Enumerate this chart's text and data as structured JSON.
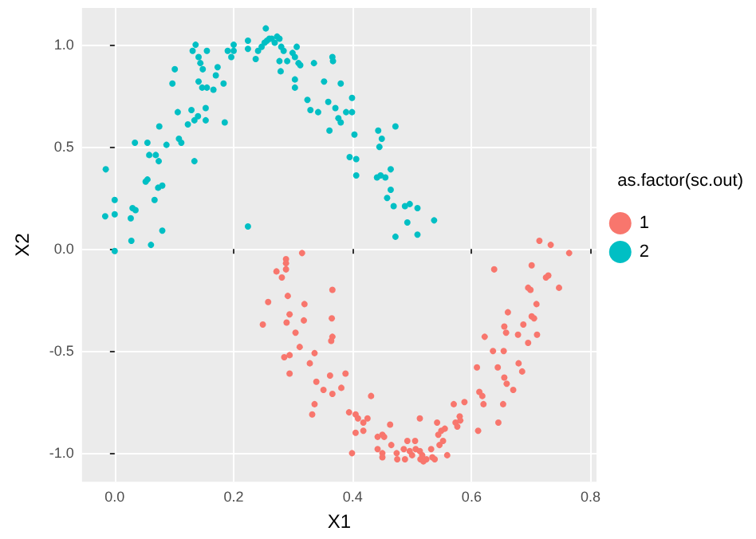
{
  "chart_data": {
    "type": "scatter",
    "xlabel": "X1",
    "ylabel": "X2",
    "legend_title": "as.factor(sc.out)",
    "legend": "right",
    "grid": true,
    "marker": "circle",
    "xlim": [
      -0.055,
      0.81
    ],
    "ylim": [
      -1.14,
      1.18
    ],
    "xticks": [
      {
        "value": 0,
        "label": "0.0"
      },
      {
        "value": 0.2,
        "label": "0.2"
      },
      {
        "value": 0.4,
        "label": "0.4"
      },
      {
        "value": 0.6,
        "label": "0.6"
      },
      {
        "value": 0.8,
        "label": "0.8"
      }
    ],
    "yticks": [
      {
        "value": -1,
        "label": "-1.0"
      },
      {
        "value": -0.5,
        "label": "-0.5"
      },
      {
        "value": 0,
        "label": "0.0"
      },
      {
        "value": 0.5,
        "label": "0.5"
      },
      {
        "value": 1,
        "label": "1.0"
      }
    ],
    "series": [
      {
        "name": "1",
        "color": "#f8766d",
        "x": [
          0.315,
          0.288,
          0.288,
          0.272,
          0.281,
          0.288,
          0.366,
          0.291,
          0.258,
          0.319,
          0.294,
          0.249,
          0.289,
          0.365,
          0.318,
          0.304,
          0.366,
          0.364,
          0.311,
          0.336,
          0.294,
          0.285,
          0.328,
          0.294,
          0.362,
          0.388,
          0.339,
          0.351,
          0.381,
          0.366,
          0.336,
          0.332,
          0.405,
          0.394,
          0.409,
          0.431,
          0.418,
          0.425,
          0.405,
          0.418,
          0.399,
          0.442,
          0.442,
          0.45,
          0.453,
          0.45,
          0.45,
          0.463,
          0.465,
          0.474,
          0.475,
          0.486,
          0.488,
          0.492,
          0.496,
          0.5,
          0.505,
          0.506,
          0.513,
          0.514,
          0.517,
          0.519,
          0.524,
          0.513,
          0.532,
          0.534,
          0.538,
          0.542,
          0.544,
          0.549,
          0.546,
          0.552,
          0.555,
          0.559,
          0.57,
          0.573,
          0.58,
          0.581,
          0.588,
          0.576,
          0.611,
          0.613,
          0.618,
          0.62,
          0.609,
          0.622,
          0.636,
          0.644,
          0.638,
          0.645,
          0.653,
          0.654,
          0.655,
          0.658,
          0.655,
          0.659,
          0.661,
          0.67,
          0.678,
          0.679,
          0.685,
          0.687,
          0.695,
          0.695,
          0.701,
          0.699,
          0.701,
          0.705,
          0.71,
          0.709,
          0.714,
          0.725,
          0.729,
          0.733,
          0.747,
          0.764
        ],
        "values": [
          -0.02,
          -0.05,
          -0.07,
          -0.11,
          -0.14,
          -0.1,
          -0.2,
          -0.23,
          -0.26,
          -0.27,
          -0.32,
          -0.37,
          -0.36,
          -0.34,
          -0.35,
          -0.41,
          -0.43,
          -0.45,
          -0.48,
          -0.51,
          -0.52,
          -0.53,
          -0.56,
          -0.61,
          -0.62,
          -0.61,
          -0.65,
          -0.69,
          -0.68,
          -0.71,
          -0.76,
          -0.81,
          -0.81,
          -0.8,
          -0.83,
          -0.72,
          -0.85,
          -0.83,
          -0.9,
          -0.89,
          -1.0,
          -0.92,
          -0.98,
          -0.91,
          -0.92,
          -1.0,
          -1.02,
          -0.86,
          -0.96,
          -1.0,
          -1.03,
          -0.98,
          -1.03,
          -0.94,
          -0.99,
          -1.01,
          -0.94,
          -0.98,
          -0.99,
          -1.03,
          -1.01,
          -1.04,
          -1.03,
          -0.83,
          -0.98,
          -1.02,
          -1.03,
          -0.85,
          -0.91,
          -0.89,
          -0.96,
          -0.94,
          -0.88,
          -1.01,
          -0.76,
          -0.85,
          -0.82,
          -0.84,
          -0.75,
          -0.87,
          -0.89,
          -0.7,
          -0.72,
          -0.76,
          -0.58,
          -0.43,
          -0.5,
          -0.58,
          -0.1,
          -0.85,
          -0.76,
          -0.5,
          -0.38,
          -0.41,
          -0.63,
          -0.66,
          -0.31,
          -0.69,
          -0.42,
          -0.56,
          -0.6,
          -0.37,
          -0.46,
          -0.19,
          -0.08,
          -0.2,
          -0.33,
          -0.34,
          -0.42,
          -0.27,
          0.04,
          -0.14,
          -0.13,
          0.02,
          -0.19,
          -0.02
        ]
      },
      {
        "name": "2",
        "color": "#00bfc4",
        "x": [
          -0.015,
          -0.016,
          0,
          0,
          0,
          0.028,
          0.061,
          0.027,
          0.03,
          0.035,
          0.034,
          0.055,
          0.052,
          0.055,
          0.058,
          0.069,
          0.074,
          0.075,
          0.087,
          0.067,
          0.073,
          0.08,
          0.08,
          0.097,
          0.101,
          0.106,
          0.108,
          0.112,
          0.123,
          0.129,
          0.131,
          0.136,
          0.134,
          0.14,
          0.141,
          0.144,
          0.148,
          0.141,
          0.147,
          0.155,
          0.153,
          0.153,
          0.134,
          0.155,
          0.166,
          0.17,
          0.173,
          0.183,
          0.185,
          0.19,
          0.196,
          0.2,
          0.2,
          0.224,
          0.224,
          0.237,
          0.224,
          0.241,
          0.247,
          0.252,
          0.256,
          0.254,
          0.26,
          0.264,
          0.269,
          0.273,
          0.277,
          0.28,
          0.284,
          0.277,
          0.279,
          0.29,
          0.299,
          0.303,
          0.306,
          0.309,
          0.312,
          0.303,
          0.303,
          0.324,
          0.329,
          0.335,
          0.342,
          0.352,
          0.359,
          0.361,
          0.366,
          0.367,
          0.371,
          0.376,
          0.38,
          0.38,
          0.389,
          0.399,
          0.399,
          0.403,
          0.395,
          0.406,
          0.406,
          0.445,
          0.443,
          0.449,
          0.441,
          0.447,
          0.455,
          0.458,
          0.464,
          0.464,
          0.469,
          0.472,
          0.488,
          0.496,
          0.509,
          0.492,
          0.509,
          0.537,
          0.472
        ],
        "values": [
          0.39,
          0.16,
          0.24,
          0.17,
          -0.01,
          0.04,
          0.02,
          0.15,
          0.2,
          0.19,
          0.52,
          0.52,
          0.33,
          0.34,
          0.46,
          0.46,
          0.43,
          0.6,
          0.51,
          0.24,
          0.3,
          0.31,
          0.09,
          0.81,
          0.88,
          0.67,
          0.54,
          0.52,
          0.61,
          0.68,
          0.97,
          1.0,
          0.63,
          0.65,
          0.94,
          0.91,
          0.88,
          0.82,
          0.79,
          0.79,
          0.69,
          0.63,
          0.43,
          0.97,
          0.78,
          0.85,
          0.89,
          0.81,
          0.62,
          0.97,
          0.94,
          1.0,
          0.97,
          1.02,
          0.98,
          0.93,
          0.11,
          0.97,
          0.99,
          1.01,
          1.02,
          1.08,
          1.03,
          1.03,
          1.01,
          1.04,
          1.03,
          0.99,
          0.97,
          0.92,
          0.87,
          0.92,
          0.96,
          0.94,
          0.99,
          0.91,
          0.9,
          0.83,
          0.79,
          0.73,
          0.68,
          0.91,
          0.67,
          0.82,
          0.72,
          0.58,
          0.94,
          0.92,
          0.69,
          0.64,
          0.62,
          0.81,
          0.67,
          0.67,
          0.74,
          0.56,
          0.45,
          0.44,
          0.36,
          0.5,
          0.58,
          0.54,
          0.35,
          0.36,
          0.35,
          0.25,
          0.39,
          0.29,
          0.21,
          0.6,
          0.21,
          0.22,
          0.2,
          0.13,
          0.07,
          0.14,
          0.06
        ]
      }
    ]
  }
}
